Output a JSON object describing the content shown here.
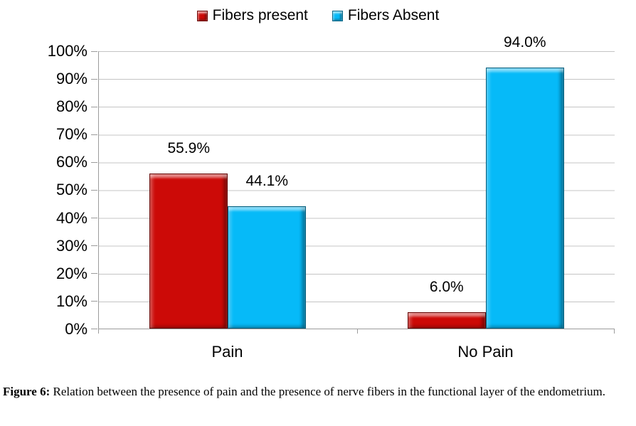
{
  "chart_data": {
    "type": "bar",
    "title": "",
    "categories": [
      "Pain",
      "No Pain"
    ],
    "series": [
      {
        "name": "Fibers present",
        "color": "#cc0a07",
        "values": [
          55.9,
          6.0
        ],
        "data_labels": [
          "55.9%",
          "6.0%"
        ]
      },
      {
        "name": "Fibers Absent",
        "color": "#06baf8",
        "values": [
          44.1,
          94.0
        ],
        "data_labels": [
          "44.1%",
          "94.0%"
        ]
      }
    ],
    "ylim": [
      0,
      100
    ],
    "ytick_labels": [
      "100%",
      "90%",
      "80%",
      "70%",
      "60%",
      "50%",
      "40%",
      "30%",
      "20%",
      "10%",
      "0%"
    ],
    "xlabel": "",
    "ylabel": "",
    "grid": "horizontal",
    "gridline_color": "#c4c4c4",
    "axis_color": "#9c9c9c",
    "legend_position": "top-center"
  },
  "caption": {
    "label": "Figure 6:",
    "text": "Relation between the presence of pain and the presence of nerve fibers in the functional layer of the endometrium."
  }
}
